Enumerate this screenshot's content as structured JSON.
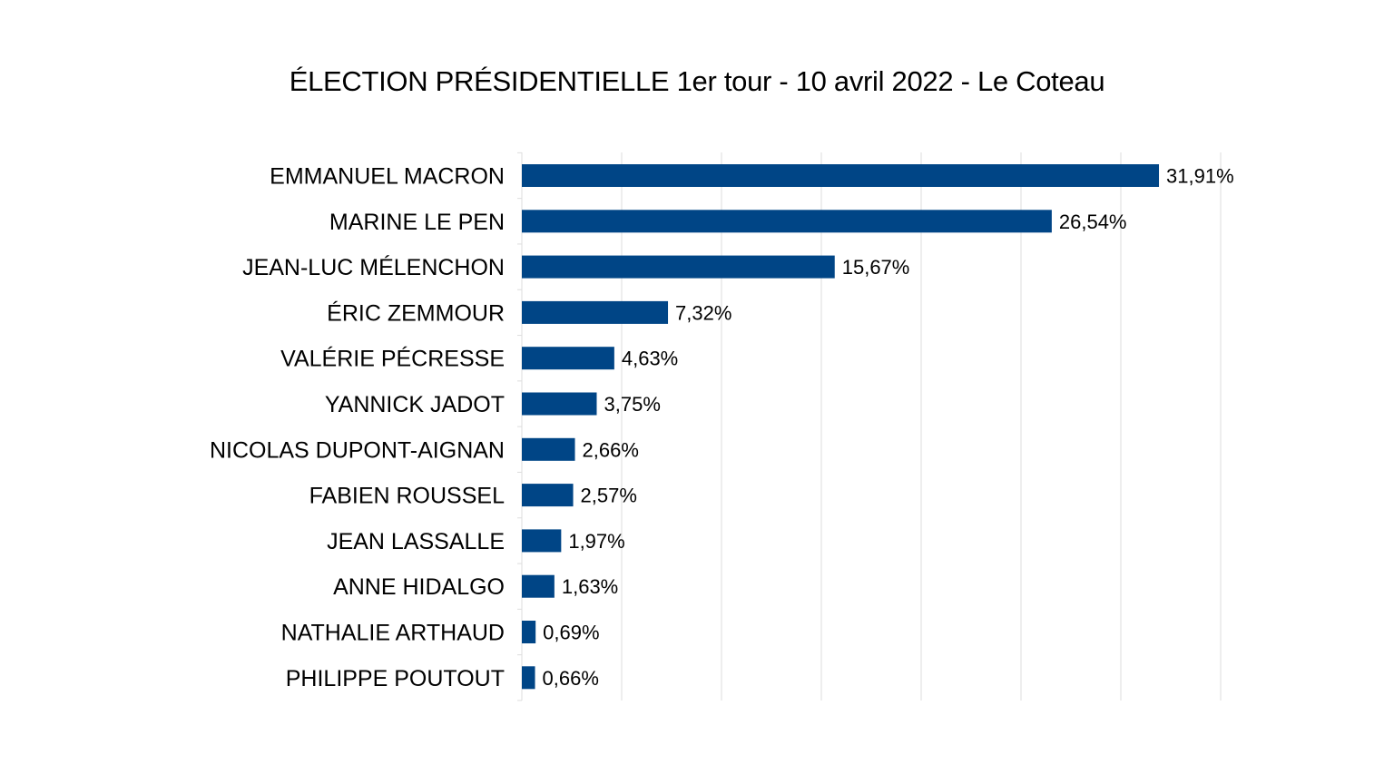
{
  "chart_data": {
    "type": "bar",
    "orientation": "horizontal",
    "title": "ÉLECTION PRÉSIDENTIELLE 1er tour - 10 avril 2022 - Le Coteau",
    "categories": [
      "EMMANUEL MACRON",
      "MARINE LE PEN",
      "JEAN-LUC MÉLENCHON",
      "ÉRIC ZEMMOUR",
      "VALÉRIE PÉCRESSE",
      "YANNICK JADOT",
      "NICOLAS DUPONT-AIGNAN",
      "FABIEN ROUSSEL",
      "JEAN LASSALLE",
      "ANNE HIDALGO",
      "NATHALIE ARTHAUD",
      "PHILIPPE POUTOUT"
    ],
    "values": [
      31.91,
      26.54,
      15.67,
      7.32,
      4.63,
      3.75,
      2.66,
      2.57,
      1.97,
      1.63,
      0.69,
      0.66
    ],
    "value_labels": [
      "31,91%",
      "26,54%",
      "15,67%",
      "7,32%",
      "4,63%",
      "3,75%",
      "2,66%",
      "2,57%",
      "1,97%",
      "1,63%",
      "0,69%",
      "0,66%"
    ],
    "xlim": [
      0,
      35
    ],
    "grid": true,
    "bar_color": "#004586",
    "grid_color": "#dddddd"
  }
}
